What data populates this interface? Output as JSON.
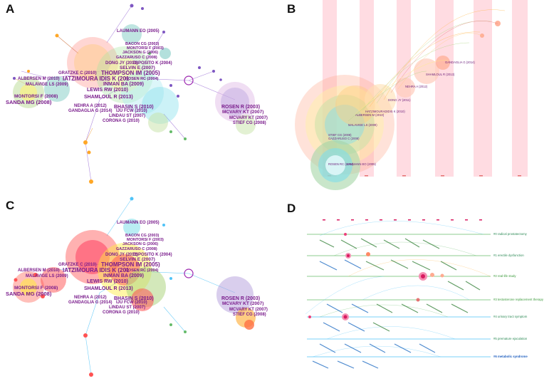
{
  "panels": {
    "a": {
      "label": "A"
    },
    "b": {
      "label": "B"
    },
    "c": {
      "label": "C"
    },
    "d": {
      "label": "D"
    }
  },
  "network_labels": {
    "laumann": "LAUMANN EO (2005)",
    "bacon": "BACON CG (2003)",
    "montorsi_f2003": "MONTORSI F (2003)",
    "jackson": "JACKSON G (2006)",
    "gazzaruso": "GAZZARUSO C (2008)",
    "dong": "DONG JY (2011)",
    "esposito": "ESPOSITO K (2004)",
    "selvin": "SELVIN E (2007)",
    "gratzke": "GRATZKE C (2010)",
    "thompson": "THOMPSON IM (2005)",
    "albersen": "ALBERSEN M (2010)",
    "iatzimoura": "IATZIMOURA IDIS K (201",
    "rosen_rc": "ROSEN RC (2004)",
    "malavige": "MALAVIGE LS (2009)",
    "inman": "INMAN BA (2009)",
    "lewis": "LEWIS RW (2010)",
    "montorsi_f2008": "MONTORSI F (2008)",
    "sanda": "SANDA MG (2008)",
    "shamloul": "SHAMLOUL R (2013)",
    "bhasin": "BHASIN S (2010)",
    "nehra": "NEHRA A (2012)",
    "gandaglia": "GANDAGLIA G (2014)",
    "iju": "IJU FCW (2010)",
    "lindau": "LINDAU ST (2007)",
    "corona": "CORONA G (2010)",
    "rosen_r": "ROSEN R (2003)",
    "mcvary_1": "MCVARY KT (2007)",
    "mcvary_2": "MCVARY KT (2007)",
    "stief": "STIEF CG (2008)"
  },
  "timeline_b": {
    "labels": {
      "gandaglia": "GANDAGLIA G (2014)",
      "shamloul": "SHAMLOUL R (2013)",
      "nehra": "NEHRA A (2012)",
      "dong": "DONG JY (2011)",
      "hatzimoura": "HATZIMOURADIDIS K (2010)",
      "albersen": "ALBERSEN M (2010)",
      "malavige": "MALAVIGE LS (2009)",
      "stief": "STIEF CG (2008)",
      "gazzaruso": "GAZZARUSO C (2008)",
      "rosen_rc": "ROSEN RC (2004)",
      "laumann": "LAUMANN EO (2005)"
    }
  },
  "timeline_d": {
    "clusters": [
      {
        "name": "#0 radical prostatectomy",
        "color": "#2e8b57"
      },
      {
        "name": "#1 erectile dysfunction",
        "color": "#2e8b57"
      },
      {
        "name": "#2 real-life study",
        "color": "#3a9a3a"
      },
      {
        "name": "#3 testosterone replacement therapy",
        "color": "#3a9a3a"
      },
      {
        "name": "#4 urinary tract symptom",
        "color": "#2e8b57"
      },
      {
        "name": "#5 premature ejaculation",
        "color": "#2e8b57"
      },
      {
        "name": "#6 metabolic syndrome",
        "color": "#1f5fbf"
      }
    ]
  },
  "colors": {
    "label_purple": "#7a1c8c",
    "timeline_band": "#ffd6dd",
    "cluster_green": "#2e8b57",
    "cluster_blue": "#1f5fbf"
  }
}
